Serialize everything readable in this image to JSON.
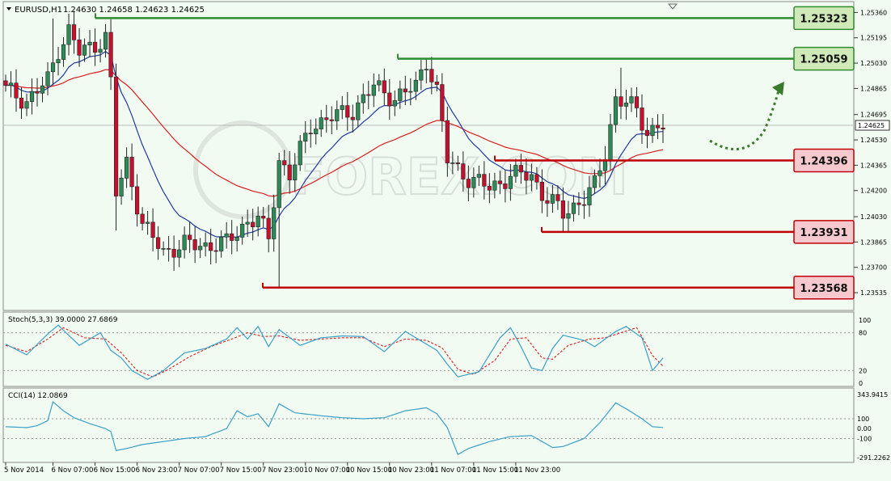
{
  "chart_data": {
    "type": "candlestick",
    "symbol_header": "EURUSD,H1",
    "ohlc_header": "1.24630 1.24658 1.24623 1.24625",
    "watermark": "FOREX.COM",
    "colors": {
      "background": "#f2fbf2",
      "bull": "#2e8b57",
      "bear": "#c8102e",
      "ma_fast": "#1f3b9c",
      "ma_slow": "#d62020",
      "resistance": "#2e8b2e",
      "support": "#c00000",
      "oscillator": "#3aa0c8",
      "signal": "#d62020",
      "arrow": "#3a7a2a"
    },
    "price_axis": {
      "ylim": [
        1.2343,
        1.2542
      ],
      "ticks": [
        "1.25360",
        "1.25195",
        "1.25030",
        "1.24865",
        "1.24695",
        "1.24530",
        "1.24365",
        "1.24200",
        "1.24030",
        "1.23865",
        "1.23700",
        "1.23535"
      ],
      "current_price": "1.24625"
    },
    "levels": [
      {
        "label": "1.25323",
        "kind": "resistance",
        "value": 1.25323
      },
      {
        "label": "1.25059",
        "kind": "resistance",
        "value": 1.25059
      },
      {
        "label": "1.24396",
        "kind": "support",
        "value": 1.24396
      },
      {
        "label": "1.23931",
        "kind": "support",
        "value": 1.23931
      },
      {
        "label": "1.23568",
        "kind": "support",
        "value": 1.23568
      }
    ],
    "time_labels": [
      "5 Nov 2014",
      "6 Nov 07:00",
      "6 Nov 15:00",
      "6 Nov 23:00",
      "7 Nov 07:00",
      "7 Nov 15:00",
      "7 Nov 23:00",
      "10 Nov 07:00",
      "10 Nov 15:00",
      "10 Nov 23:00",
      "11 Nov 07:00",
      "11 Nov 15:00",
      "11 Nov 23:00"
    ],
    "close_anchors": [
      [
        0,
        1.2486
      ],
      [
        4,
        1.2478
      ],
      [
        8,
        1.2492
      ],
      [
        10,
        1.2512
      ],
      [
        12,
        1.2524
      ],
      [
        14,
        1.251
      ],
      [
        17,
        1.2515
      ],
      [
        19,
        1.252
      ],
      [
        20,
        1.249
      ],
      [
        21,
        1.2418
      ],
      [
        23,
        1.2438
      ],
      [
        26,
        1.2398
      ],
      [
        30,
        1.238
      ],
      [
        34,
        1.2385
      ],
      [
        38,
        1.2384
      ],
      [
        42,
        1.2386
      ],
      [
        46,
        1.24
      ],
      [
        48,
        1.2402
      ],
      [
        50,
        1.2388
      ],
      [
        52,
        1.244
      ],
      [
        54,
        1.243
      ],
      [
        58,
        1.2462
      ],
      [
        62,
        1.2468
      ],
      [
        66,
        1.2472
      ],
      [
        70,
        1.2488
      ],
      [
        74,
        1.248
      ],
      [
        78,
        1.2488
      ],
      [
        80,
        1.2505
      ],
      [
        82,
        1.2485
      ],
      [
        84,
        1.244
      ],
      [
        88,
        1.2428
      ],
      [
        92,
        1.2422
      ],
      [
        94,
        1.2425
      ],
      [
        96,
        1.243
      ],
      [
        100,
        1.243
      ],
      [
        102,
        1.2418
      ],
      [
        104,
        1.2412
      ],
      [
        106,
        1.2405
      ],
      [
        108,
        1.241
      ],
      [
        110,
        1.2415
      ],
      [
        112,
        1.2423
      ],
      [
        114,
        1.2445
      ],
      [
        116,
        1.248
      ],
      [
        118,
        1.2477
      ],
      [
        120,
        1.2472
      ],
      [
        122,
        1.2458
      ],
      [
        124,
        1.2462
      ]
    ],
    "stoch": {
      "label": "Stoch(5,3,3) 39.0000 27.6869",
      "ylim": [
        0,
        100
      ],
      "ticks": [
        "100",
        "80",
        "20",
        "0"
      ],
      "levels": [
        80,
        20
      ],
      "k_anchors": [
        [
          0,
          62
        ],
        [
          4,
          45
        ],
        [
          8,
          78
        ],
        [
          10,
          92
        ],
        [
          14,
          60
        ],
        [
          18,
          80
        ],
        [
          20,
          52
        ],
        [
          22,
          40
        ],
        [
          24,
          20
        ],
        [
          27,
          6
        ],
        [
          30,
          20
        ],
        [
          34,
          48
        ],
        [
          38,
          55
        ],
        [
          42,
          70
        ],
        [
          44,
          88
        ],
        [
          46,
          70
        ],
        [
          48,
          90
        ],
        [
          50,
          58
        ],
        [
          52,
          85
        ],
        [
          56,
          60
        ],
        [
          60,
          72
        ],
        [
          64,
          75
        ],
        [
          68,
          74
        ],
        [
          72,
          50
        ],
        [
          76,
          82
        ],
        [
          80,
          62
        ],
        [
          82,
          52
        ],
        [
          84,
          30
        ],
        [
          86,
          10
        ],
        [
          90,
          18
        ],
        [
          92,
          45
        ],
        [
          94,
          72
        ],
        [
          96,
          88
        ],
        [
          98,
          58
        ],
        [
          100,
          24
        ],
        [
          102,
          20
        ],
        [
          104,
          55
        ],
        [
          106,
          76
        ],
        [
          110,
          68
        ],
        [
          112,
          58
        ],
        [
          116,
          82
        ],
        [
          118,
          90
        ],
        [
          121,
          72
        ],
        [
          123,
          20
        ],
        [
          125,
          40
        ]
      ],
      "d_anchors": [
        [
          0,
          60
        ],
        [
          4,
          50
        ],
        [
          8,
          70
        ],
        [
          11,
          88
        ],
        [
          15,
          72
        ],
        [
          19,
          70
        ],
        [
          22,
          48
        ],
        [
          25,
          20
        ],
        [
          28,
          10
        ],
        [
          31,
          22
        ],
        [
          35,
          42
        ],
        [
          39,
          58
        ],
        [
          43,
          70
        ],
        [
          46,
          80
        ],
        [
          49,
          74
        ],
        [
          52,
          75
        ],
        [
          56,
          68
        ],
        [
          60,
          70
        ],
        [
          64,
          72
        ],
        [
          68,
          72
        ],
        [
          72,
          58
        ],
        [
          76,
          70
        ],
        [
          80,
          68
        ],
        [
          83,
          56
        ],
        [
          86,
          22
        ],
        [
          89,
          14
        ],
        [
          93,
          36
        ],
        [
          96,
          70
        ],
        [
          99,
          72
        ],
        [
          102,
          40
        ],
        [
          104,
          38
        ],
        [
          107,
          60
        ],
        [
          111,
          70
        ],
        [
          114,
          72
        ],
        [
          117,
          80
        ],
        [
          120,
          88
        ],
        [
          123,
          44
        ],
        [
          125,
          27
        ]
      ]
    },
    "cci": {
      "label": "CCI(14) 12.0869",
      "ylim": [
        -291.2262,
        343.9415
      ],
      "ticks": [
        "343.9415",
        "100",
        "0.00",
        "-100",
        "-291.2262"
      ],
      "levels": [
        100,
        -100
      ],
      "anchors": [
        [
          0,
          20
        ],
        [
          4,
          10
        ],
        [
          6,
          30
        ],
        [
          8,
          80
        ],
        [
          9,
          270
        ],
        [
          11,
          180
        ],
        [
          13,
          110
        ],
        [
          16,
          50
        ],
        [
          19,
          0
        ],
        [
          20,
          -30
        ],
        [
          21,
          -220
        ],
        [
          23,
          -200
        ],
        [
          26,
          -160
        ],
        [
          30,
          -130
        ],
        [
          34,
          -100
        ],
        [
          38,
          -80
        ],
        [
          42,
          0
        ],
        [
          44,
          180
        ],
        [
          46,
          120
        ],
        [
          48,
          150
        ],
        [
          50,
          20
        ],
        [
          52,
          250
        ],
        [
          55,
          160
        ],
        [
          60,
          130
        ],
        [
          64,
          110
        ],
        [
          68,
          100
        ],
        [
          72,
          110
        ],
        [
          76,
          180
        ],
        [
          80,
          210
        ],
        [
          82,
          150
        ],
        [
          84,
          10
        ],
        [
          86,
          -260
        ],
        [
          88,
          -200
        ],
        [
          92,
          -130
        ],
        [
          96,
          -80
        ],
        [
          100,
          -70
        ],
        [
          102,
          -130
        ],
        [
          104,
          -190
        ],
        [
          106,
          -180
        ],
        [
          110,
          -100
        ],
        [
          113,
          60
        ],
        [
          116,
          260
        ],
        [
          118,
          200
        ],
        [
          121,
          100
        ],
        [
          123,
          20
        ],
        [
          125,
          12
        ]
      ]
    }
  }
}
